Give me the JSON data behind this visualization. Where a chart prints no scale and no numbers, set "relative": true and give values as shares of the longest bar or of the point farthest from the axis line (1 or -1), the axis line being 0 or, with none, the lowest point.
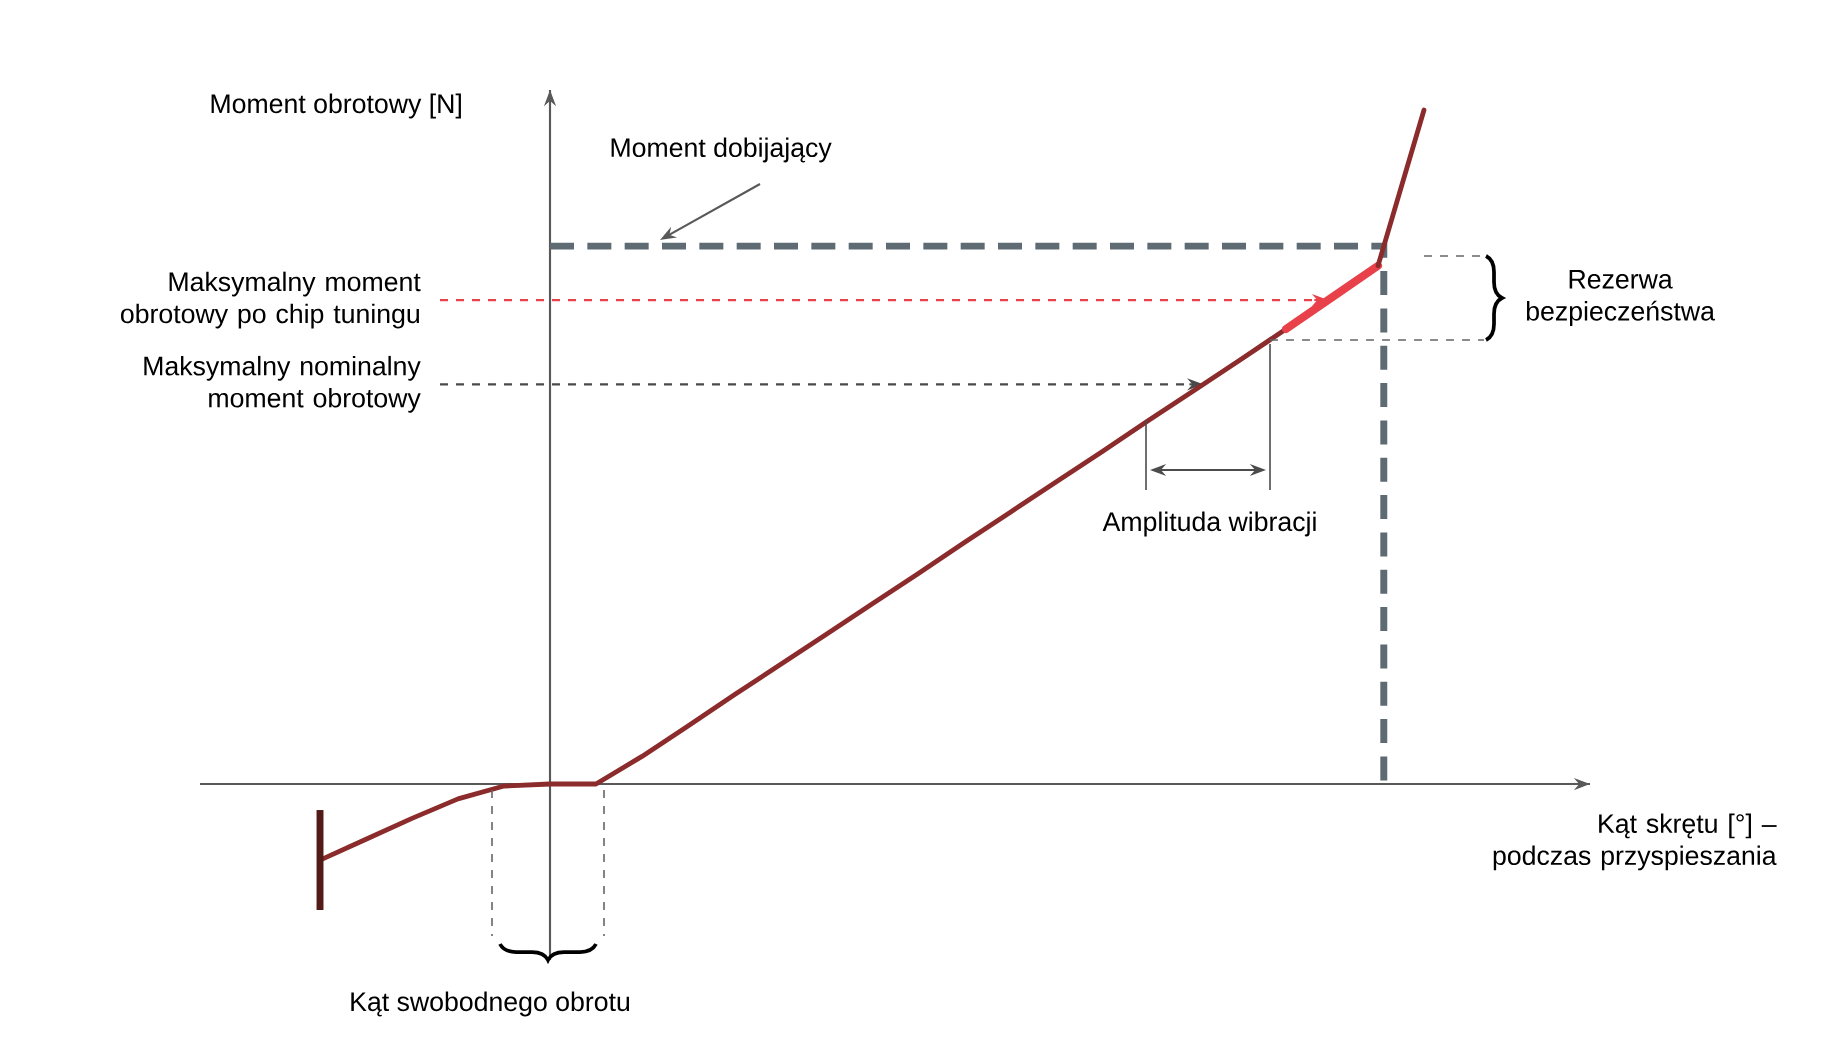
{
  "chart_data": {
    "type": "line",
    "relative": true,
    "xlabel": "Kąt skrętu [°] – podczas przyspieszania",
    "ylabel": "Moment obrotowy [N]",
    "categories": [
      null,
      null,
      null,
      null,
      null,
      null,
      null,
      null,
      null,
      null,
      null,
      null,
      null,
      null,
      null,
      null,
      null,
      null,
      null,
      null,
      null,
      null,
      null,
      null,
      null
    ],
    "series": [
      {
        "color": "#8b2b2b",
        "values": [
          -0.113,
          -0.082,
          -0.051,
          -0.022,
          -0.003,
          0,
          0,
          0.041,
          0.086,
          0.132,
          0.177,
          0.222,
          0.267,
          0.312,
          0.358,
          0.403,
          0.448,
          0.493,
          0.539,
          0.584,
          0.629,
          0.675,
          null,
          null,
          null
        ]
      },
      {
        "color": "#e8414a",
        "values": [
          null,
          null,
          null,
          null,
          null,
          null,
          null,
          null,
          null,
          null,
          null,
          null,
          null,
          null,
          null,
          null,
          null,
          null,
          null,
          null,
          null,
          0.675,
          0.722,
          0.769,
          null
        ]
      },
      {
        "color": "#8b2b2b",
        "values": [
          null,
          null,
          null,
          null,
          null,
          null,
          null,
          null,
          null,
          null,
          null,
          null,
          null,
          null,
          null,
          null,
          null,
          null,
          null,
          null,
          null,
          null,
          null,
          0.769,
          1.0
        ]
      }
    ],
    "ref_lines": [
      {
        "axis": "y",
        "value": 0.798,
        "color": "#5f6b73",
        "line_style": "dashed"
      },
      {
        "axis": "y",
        "value": 0.718,
        "color": "#e8414a",
        "line_style": "dashed",
        "label": "Maksymalny moment obrotowy po chip tuningu"
      },
      {
        "axis": "y",
        "value": 0.593,
        "color": "#4a4a4a",
        "line_style": "dashed",
        "label": "Maksymalny nominalny moment obrotowy"
      }
    ],
    "annotations": [
      "Moment dobijający",
      "Rezerwa bezpieczeństwa",
      "Amplituda wibracji",
      "Kąt swobodnego obrotu"
    ]
  }
}
